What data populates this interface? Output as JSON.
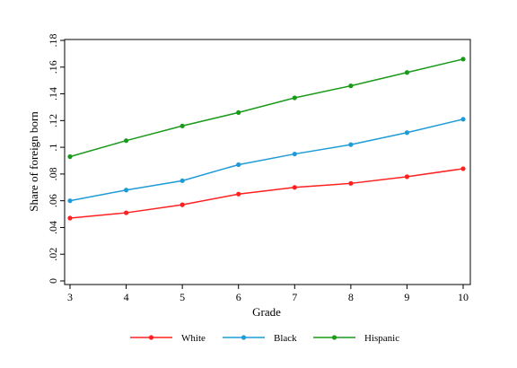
{
  "chart_data": {
    "type": "line",
    "title": "",
    "xlabel": "Grade",
    "ylabel": "Share of foreign born",
    "x": [
      3,
      4,
      5,
      6,
      7,
      8,
      9,
      10
    ],
    "x_ticks": [
      "3",
      "4",
      "5",
      "6",
      "7",
      "8",
      "9",
      "10"
    ],
    "xlim": [
      3,
      10
    ],
    "ylim": [
      0,
      0.18
    ],
    "y_ticks": [
      0,
      0.02,
      0.04,
      0.06,
      0.08,
      0.1,
      0.12,
      0.14,
      0.16,
      0.18
    ],
    "y_tick_labels": [
      "0",
      ".02",
      ".04",
      ".06",
      ".08",
      ".1",
      ".12",
      ".14",
      ".16",
      ".18"
    ],
    "grid": false,
    "legend_position": "bottom",
    "series": [
      {
        "name": "White",
        "color": "#ff2020",
        "values": [
          0.047,
          0.051,
          0.057,
          0.065,
          0.07,
          0.073,
          0.078,
          0.084
        ]
      },
      {
        "name": "Black",
        "color": "#1e9bd7",
        "values": [
          0.06,
          0.068,
          0.075,
          0.087,
          0.095,
          0.102,
          0.111,
          0.121
        ]
      },
      {
        "name": "Hispanic",
        "color": "#1a9a1a",
        "values": [
          0.093,
          0.105,
          0.116,
          0.126,
          0.137,
          0.146,
          0.156,
          0.166
        ]
      }
    ]
  }
}
